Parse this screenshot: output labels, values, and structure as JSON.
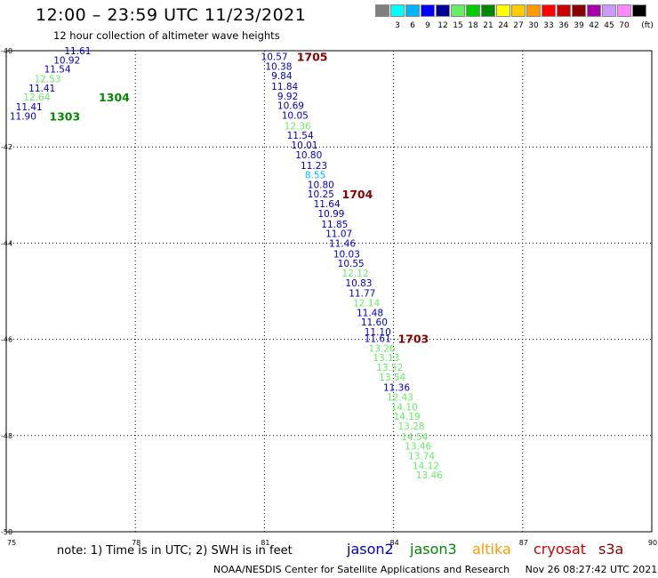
{
  "title": "12:00 – 23:59 UTC 11/23/2021",
  "subtitle": "12 hour collection of altimeter wave heights",
  "legend": {
    "unit": "(ft)",
    "swatches": [
      {
        "color": "#808080",
        "label": ""
      },
      {
        "color": "#00ffff",
        "label": "3"
      },
      {
        "color": "#00b4ff",
        "label": "6"
      },
      {
        "color": "#0000ff",
        "label": "9"
      },
      {
        "color": "#000096",
        "label": "12"
      },
      {
        "color": "#66ee66",
        "label": "15"
      },
      {
        "color": "#00cc00",
        "label": "18"
      },
      {
        "color": "#008800",
        "label": "21"
      },
      {
        "color": "#ffff00",
        "label": "24"
      },
      {
        "color": "#ffcc00",
        "label": "27"
      },
      {
        "color": "#ff9900",
        "label": "30"
      },
      {
        "color": "#ff0000",
        "label": "33"
      },
      {
        "color": "#cc0000",
        "label": "36"
      },
      {
        "color": "#880000",
        "label": "39"
      },
      {
        "color": "#aa00aa",
        "label": "42"
      },
      {
        "color": "#cc99ff",
        "label": "45"
      },
      {
        "color": "#ff88ff",
        "label": "70"
      },
      {
        "color": "#000000",
        "label": ""
      }
    ]
  },
  "note": "note:  1) Time is in UTC;  2) SWH is in feet",
  "satellites": [
    {
      "name": "jason2",
      "color": "#0000cc"
    },
    {
      "name": "jason3",
      "color": "#008800"
    },
    {
      "name": "altika",
      "color": "#ff9900"
    },
    {
      "name": "cryosat",
      "color": "#cc0000"
    },
    {
      "name": "s3a",
      "color": "#880000"
    }
  ],
  "footer": "NOAA/NESDIS Center for Satellite Applications and Research     Nov 26 08:27:42 UTC 2021",
  "chart_data": {
    "type": "scatter",
    "xlim": [
      75,
      90
    ],
    "ylim": [
      -50,
      -40
    ],
    "x_ticks": [
      75,
      78,
      81,
      84,
      87,
      90
    ],
    "y_ticks": [
      -40,
      -42,
      -44,
      -46,
      -48,
      -50
    ],
    "x_tick_labels": [
      "75",
      "78",
      "81",
      "84",
      "87",
      "90"
    ],
    "y_tick_labels": [
      "-40",
      "-42",
      "-44",
      "-46",
      "-48",
      "-50"
    ],
    "grid": true,
    "points": [
      {
        "x": 76.35,
        "y": -40.0,
        "v": "11.61",
        "color": "#0000cc"
      },
      {
        "x": 76.1,
        "y": -40.19,
        "v": "10.92",
        "color": "#0000cc"
      },
      {
        "x": 75.88,
        "y": -40.38,
        "v": "11.54",
        "color": "#0000cc"
      },
      {
        "x": 75.65,
        "y": -40.58,
        "v": "12.53",
        "color": "#66ee66"
      },
      {
        "x": 75.52,
        "y": -40.78,
        "v": "11.41",
        "color": "#0000cc"
      },
      {
        "x": 75.4,
        "y": -40.96,
        "v": "12.64",
        "color": "#66ee66"
      },
      {
        "x": 75.22,
        "y": -41.16,
        "v": "11.41",
        "color": "#0000cc"
      },
      {
        "x": 75.08,
        "y": -41.36,
        "v": "11.90",
        "color": "#0000cc"
      },
      {
        "x": 80.92,
        "y": -40.12,
        "v": "10.57",
        "color": "#0000cc"
      },
      {
        "x": 81.02,
        "y": -40.32,
        "v": "10.38",
        "color": "#0000cc"
      },
      {
        "x": 81.16,
        "y": -40.52,
        "v": "9.84",
        "color": "#0000cc"
      },
      {
        "x": 81.16,
        "y": -40.74,
        "v": "11.84",
        "color": "#0000cc"
      },
      {
        "x": 81.3,
        "y": -40.94,
        "v": "9.92",
        "color": "#0000cc"
      },
      {
        "x": 81.3,
        "y": -41.14,
        "v": "10.69",
        "color": "#0000cc"
      },
      {
        "x": 81.4,
        "y": -41.34,
        "v": "10.05",
        "color": "#0000cc"
      },
      {
        "x": 81.46,
        "y": -41.56,
        "v": "12.36",
        "color": "#66ee66"
      },
      {
        "x": 81.52,
        "y": -41.76,
        "v": "11.54",
        "color": "#0000cc"
      },
      {
        "x": 81.62,
        "y": -41.96,
        "v": "10.01",
        "color": "#0000cc"
      },
      {
        "x": 81.72,
        "y": -42.16,
        "v": "10.80",
        "color": "#0000cc"
      },
      {
        "x": 81.84,
        "y": -42.38,
        "v": "11.23",
        "color": "#0000cc"
      },
      {
        "x": 81.94,
        "y": -42.58,
        "v": "8.55",
        "color": "#00b4ff"
      },
      {
        "x": 82.0,
        "y": -42.78,
        "v": "10.80",
        "color": "#0000cc"
      },
      {
        "x": 82.0,
        "y": -42.98,
        "v": "10.25",
        "color": "#0000cc"
      },
      {
        "x": 82.14,
        "y": -43.18,
        "v": "11.64",
        "color": "#0000cc"
      },
      {
        "x": 82.24,
        "y": -43.38,
        "v": "10.99",
        "color": "#0000cc"
      },
      {
        "x": 82.32,
        "y": -43.6,
        "v": "11.85",
        "color": "#0000cc"
      },
      {
        "x": 82.42,
        "y": -43.8,
        "v": "11.07",
        "color": "#0000cc"
      },
      {
        "x": 82.5,
        "y": -44.0,
        "v": "11.46",
        "color": "#0000cc"
      },
      {
        "x": 82.6,
        "y": -44.22,
        "v": "10.03",
        "color": "#0000cc"
      },
      {
        "x": 82.7,
        "y": -44.42,
        "v": "10.55",
        "color": "#0000cc"
      },
      {
        "x": 82.8,
        "y": -44.62,
        "v": "12.12",
        "color": "#66ee66"
      },
      {
        "x": 82.88,
        "y": -44.82,
        "v": "10.83",
        "color": "#0000cc"
      },
      {
        "x": 82.96,
        "y": -45.04,
        "v": "11.77",
        "color": "#0000cc"
      },
      {
        "x": 83.06,
        "y": -45.24,
        "v": "12.14",
        "color": "#66ee66"
      },
      {
        "x": 83.14,
        "y": -45.44,
        "v": "11.48",
        "color": "#0000cc"
      },
      {
        "x": 83.24,
        "y": -45.64,
        "v": "11.60",
        "color": "#0000cc"
      },
      {
        "x": 83.32,
        "y": -45.84,
        "v": "11.10",
        "color": "#0000cc"
      },
      {
        "x": 83.32,
        "y": -45.98,
        "v": "11.61",
        "color": "#0000cc"
      },
      {
        "x": 83.42,
        "y": -46.18,
        "v": "13.26",
        "color": "#66ee66"
      },
      {
        "x": 83.52,
        "y": -46.38,
        "v": "13.13",
        "color": "#66ee66"
      },
      {
        "x": 83.6,
        "y": -46.58,
        "v": "13.52",
        "color": "#66ee66"
      },
      {
        "x": 83.66,
        "y": -46.78,
        "v": "13.54",
        "color": "#66ee66"
      },
      {
        "x": 83.76,
        "y": -47.0,
        "v": "11.36",
        "color": "#0000cc"
      },
      {
        "x": 83.84,
        "y": -47.2,
        "v": "12.43",
        "color": "#66ee66"
      },
      {
        "x": 83.94,
        "y": -47.4,
        "v": "14.10",
        "color": "#66ee66"
      },
      {
        "x": 84.0,
        "y": -47.6,
        "v": "14.19",
        "color": "#66ee66"
      },
      {
        "x": 84.1,
        "y": -47.8,
        "v": "13.28",
        "color": "#66ee66"
      },
      {
        "x": 84.18,
        "y": -48.02,
        "v": "14.54",
        "color": "#66ee66"
      },
      {
        "x": 84.26,
        "y": -48.22,
        "v": "13.46",
        "color": "#66ee66"
      },
      {
        "x": 84.34,
        "y": -48.42,
        "v": "13.74",
        "color": "#66ee66"
      },
      {
        "x": 84.44,
        "y": -48.62,
        "v": "14.12",
        "color": "#66ee66"
      },
      {
        "x": 84.52,
        "y": -48.82,
        "v": "13.46",
        "color": "#66ee66"
      }
    ],
    "annotations": [
      {
        "x": 81.75,
        "y": -40.12,
        "text": "1705",
        "color": "#880000"
      },
      {
        "x": 77.15,
        "y": -40.96,
        "text": "1304",
        "color": "#008800"
      },
      {
        "x": 76.0,
        "y": -41.36,
        "text": "1303",
        "color": "#008800"
      },
      {
        "x": 82.8,
        "y": -42.98,
        "text": "1704",
        "color": "#880000"
      },
      {
        "x": 84.1,
        "y": -45.98,
        "text": "1703",
        "color": "#880000"
      }
    ]
  }
}
